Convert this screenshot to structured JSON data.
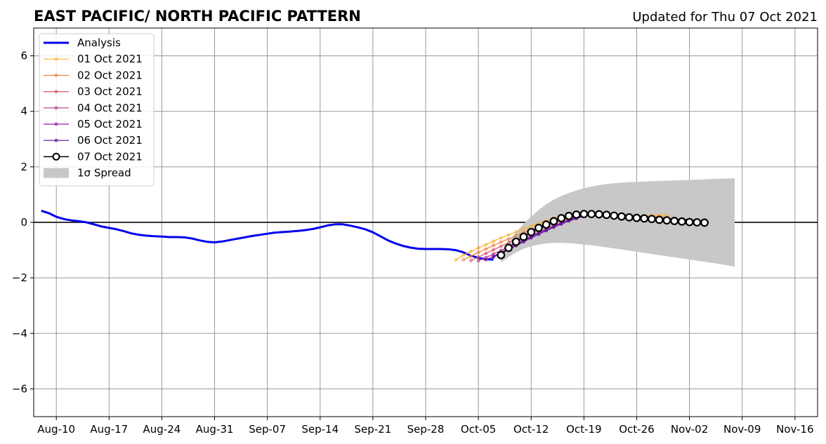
{
  "chart_data": {
    "type": "line",
    "title": "EAST PACIFIC/ NORTH PACIFIC PATTERN",
    "updated": "Updated for Thu 07 Oct 2021",
    "x_start_date": "2021-08-08",
    "xlim": [
      "2021-08-07",
      "2021-11-19"
    ],
    "ylim": [
      -7,
      7
    ],
    "yticks": [
      -6,
      -4,
      -2,
      0,
      2,
      4,
      6
    ],
    "ytick_labels": [
      "−6",
      "−4",
      "−2",
      "0",
      "2",
      "4",
      "6"
    ],
    "xticks": [
      "2021-08-10",
      "2021-08-17",
      "2021-08-24",
      "2021-08-31",
      "2021-09-07",
      "2021-09-14",
      "2021-09-21",
      "2021-09-28",
      "2021-10-05",
      "2021-10-12",
      "2021-10-19",
      "2021-10-26",
      "2021-11-02",
      "2021-11-09",
      "2021-11-16"
    ],
    "xtick_labels": [
      "Aug-10",
      "Aug-17",
      "Aug-24",
      "Aug-31",
      "Sep-07",
      "Sep-14",
      "Sep-21",
      "Sep-28",
      "Oct-05",
      "Oct-12",
      "Oct-19",
      "Oct-26",
      "Nov-02",
      "Nov-09",
      "Nov-16"
    ],
    "grid": true,
    "legend_position": "upper left",
    "analysis": {
      "name": "Analysis",
      "color": "#0000ee",
      "start_date": "2021-08-08",
      "values": [
        0.42,
        0.33,
        0.2,
        0.12,
        0.07,
        0.04,
        0.0,
        -0.07,
        -0.15,
        -0.2,
        -0.25,
        -0.32,
        -0.4,
        -0.45,
        -0.48,
        -0.5,
        -0.51,
        -0.53,
        -0.53,
        -0.54,
        -0.58,
        -0.65,
        -0.7,
        -0.72,
        -0.69,
        -0.64,
        -0.59,
        -0.54,
        -0.49,
        -0.45,
        -0.41,
        -0.37,
        -0.35,
        -0.33,
        -0.31,
        -0.28,
        -0.24,
        -0.18,
        -0.11,
        -0.07,
        -0.07,
        -0.12,
        -0.18,
        -0.25,
        -0.36,
        -0.5,
        -0.65,
        -0.76,
        -0.85,
        -0.91,
        -0.95,
        -0.96,
        -0.96,
        -0.96,
        -0.97,
        -1.0,
        -1.08,
        -1.2,
        -1.28,
        -1.33,
        -1.34
      ]
    },
    "forecasts": [
      {
        "name": "01 Oct 2021",
        "color": "#f9b232",
        "start_date": "2021-10-02",
        "values": [
          -1.35,
          -1.18,
          -1.05,
          -0.92,
          -0.8,
          -0.68,
          -0.56,
          -0.45,
          -0.34,
          -0.23,
          -0.13,
          -0.03,
          0.07,
          0.15,
          0.21,
          0.25,
          0.27,
          0.28,
          0.28,
          0.27,
          0.26,
          0.25,
          0.24,
          0.24,
          0.24,
          0.24,
          0.25,
          0.26,
          0.26
        ]
      },
      {
        "name": "02 Oct 2021",
        "color": "#f0803c",
        "start_date": "2021-10-03",
        "values": [
          -1.35,
          -1.22,
          -1.08,
          -0.96,
          -0.83,
          -0.71,
          -0.6,
          -0.48,
          -0.37,
          -0.26,
          -0.15,
          -0.05,
          0.05,
          0.14,
          0.21,
          0.26,
          0.28,
          0.29,
          0.28,
          0.27,
          0.26,
          0.25,
          0.24,
          0.23,
          0.22,
          0.21,
          0.2,
          0.18
        ]
      },
      {
        "name": "03 Oct 2021",
        "color": "#dc5064",
        "start_date": "2021-10-04",
        "values": [
          -1.38,
          -1.25,
          -1.12,
          -0.99,
          -0.86,
          -0.73,
          -0.61,
          -0.49,
          -0.37,
          -0.25,
          -0.14,
          -0.03,
          0.07,
          0.16,
          0.24,
          0.29,
          0.31,
          0.31,
          0.3,
          0.28,
          0.26,
          0.23,
          0.21,
          0.19,
          0.17,
          0.15,
          0.14,
          0.12
        ]
      },
      {
        "name": "04 Oct 2021",
        "color": "#b4328c",
        "start_date": "2021-10-05",
        "values": [
          -1.38,
          -1.27,
          -1.14,
          -1.01,
          -0.88,
          -0.75,
          -0.62,
          -0.49,
          -0.36,
          -0.24,
          -0.12,
          -0.01,
          0.1,
          0.19,
          0.26,
          0.3,
          0.32,
          0.31,
          0.3,
          0.28,
          0.25,
          0.22,
          0.19,
          0.17,
          0.15,
          0.13,
          0.12,
          0.11
        ]
      },
      {
        "name": "05 Oct 2021",
        "color": "#8c1eaa",
        "start_date": "2021-10-06",
        "values": [
          -1.35,
          -1.22,
          -1.08,
          -0.94,
          -0.8,
          -0.66,
          -0.52,
          -0.39,
          -0.26,
          -0.14,
          -0.03,
          0.08,
          0.17,
          0.24,
          0.29,
          0.31,
          0.31,
          0.3,
          0.28,
          0.25,
          0.22,
          0.2,
          0.17,
          0.15,
          0.13,
          0.12,
          0.11,
          0.1
        ]
      },
      {
        "name": "06 Oct 2021",
        "color": "#5a0a96",
        "start_date": "2021-10-07",
        "values": [
          -1.25,
          -1.12,
          -0.98,
          -0.84,
          -0.7,
          -0.56,
          -0.43,
          -0.3,
          -0.18,
          -0.06,
          0.05,
          0.14,
          0.22,
          0.27,
          0.3,
          0.31,
          0.3,
          0.28,
          0.26,
          0.23,
          0.2,
          0.17,
          0.15,
          0.13,
          0.11,
          0.1,
          0.09,
          0.08
        ]
      },
      {
        "name": "07 Oct 2021",
        "color": "#000000",
        "start_date": "2021-10-08",
        "values": [
          -1.18,
          -0.92,
          -0.7,
          -0.52,
          -0.35,
          -0.2,
          -0.08,
          0.04,
          0.15,
          0.23,
          0.28,
          0.3,
          0.3,
          0.29,
          0.27,
          0.24,
          0.21,
          0.18,
          0.16,
          0.14,
          0.12,
          0.09,
          0.07,
          0.05,
          0.03,
          0.01,
          0.0,
          -0.01
        ]
      }
    ],
    "spread": {
      "name": "1σ Spread",
      "color": "#c8c8c8",
      "start_date": "2021-10-08",
      "upper": [
        -1.1,
        -0.7,
        -0.35,
        -0.05,
        0.2,
        0.45,
        0.65,
        0.82,
        0.95,
        1.06,
        1.15,
        1.23,
        1.29,
        1.34,
        1.38,
        1.41,
        1.43,
        1.45,
        1.46,
        1.47,
        1.48,
        1.49,
        1.5,
        1.51,
        1.52,
        1.53,
        1.54,
        1.55,
        1.56,
        1.57,
        1.58,
        1.59
      ],
      "lower": [
        -1.45,
        -1.25,
        -1.08,
        -0.95,
        -0.86,
        -0.8,
        -0.76,
        -0.74,
        -0.74,
        -0.75,
        -0.77,
        -0.8,
        -0.83,
        -0.86,
        -0.9,
        -0.94,
        -0.98,
        -1.02,
        -1.06,
        -1.1,
        -1.14,
        -1.18,
        -1.22,
        -1.26,
        -1.3,
        -1.34,
        -1.38,
        -1.42,
        -1.46,
        -1.5,
        -1.55,
        -1.6
      ]
    }
  }
}
